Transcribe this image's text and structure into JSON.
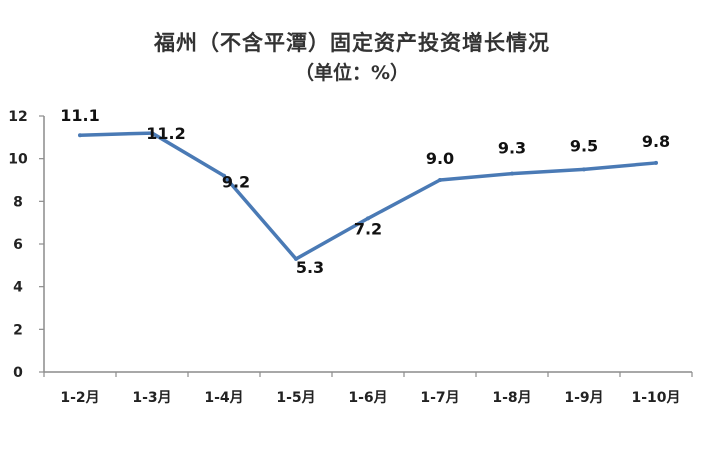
{
  "chart_data": {
    "type": "line",
    "title": "福州（不含平潭）固定资产投资增长情况",
    "subtitle": "（单位：%）",
    "categories": [
      "1-2月",
      "1-3月",
      "1-4月",
      "1-5月",
      "1-6月",
      "1-7月",
      "1-8月",
      "1-9月",
      "1-10月"
    ],
    "values": [
      11.1,
      11.2,
      9.2,
      5.3,
      7.2,
      9.0,
      9.3,
      9.5,
      9.8
    ],
    "data_labels": [
      "11.1",
      "11.2",
      "9.2",
      "5.3",
      "7.2",
      "9.0",
      "9.3",
      "9.5",
      "9.8"
    ],
    "yticks": [
      "0",
      "2",
      "4",
      "6",
      "8",
      "10",
      "12"
    ],
    "ylim": [
      0,
      12
    ],
    "grid": false,
    "legend": "none",
    "line_color": "#4a7ab5"
  }
}
